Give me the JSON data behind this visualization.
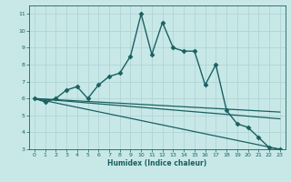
{
  "xlabel": "Humidex (Indice chaleur)",
  "ylabel": "",
  "background_color": "#c8e8e8",
  "grid_color": "#b0d4d4",
  "line_color": "#1a6060",
  "xlim": [
    -0.5,
    23.5
  ],
  "ylim": [
    3,
    11.5
  ],
  "xticks": [
    0,
    1,
    2,
    3,
    4,
    5,
    6,
    7,
    8,
    9,
    10,
    11,
    12,
    13,
    14,
    15,
    16,
    17,
    18,
    19,
    20,
    21,
    22,
    23
  ],
  "yticks": [
    3,
    4,
    5,
    6,
    7,
    8,
    9,
    10,
    11
  ],
  "series": [
    {
      "x": [
        0,
        1,
        2,
        3,
        4,
        5,
        6,
        7,
        8,
        9,
        10,
        11,
        12,
        13,
        14,
        15,
        16,
        17,
        18,
        19,
        20,
        21,
        22,
        23
      ],
      "y": [
        6.0,
        5.8,
        6.0,
        6.5,
        6.7,
        6.0,
        6.8,
        7.3,
        7.5,
        8.5,
        11.0,
        8.6,
        10.5,
        9.0,
        8.8,
        8.8,
        6.8,
        8.0,
        5.3,
        4.5,
        4.3,
        3.7,
        3.1,
        3.0
      ],
      "marker": "D",
      "markersize": 2.5,
      "linewidth": 1.0,
      "has_marker": true
    },
    {
      "x": [
        0,
        23
      ],
      "y": [
        6.0,
        3.0
      ],
      "marker": null,
      "markersize": 0,
      "linewidth": 0.9,
      "has_marker": false
    },
    {
      "x": [
        0,
        23
      ],
      "y": [
        6.0,
        5.2
      ],
      "marker": null,
      "markersize": 0,
      "linewidth": 0.9,
      "has_marker": false
    },
    {
      "x": [
        0,
        23
      ],
      "y": [
        6.0,
        4.8
      ],
      "marker": null,
      "markersize": 0,
      "linewidth": 0.9,
      "has_marker": false
    }
  ]
}
